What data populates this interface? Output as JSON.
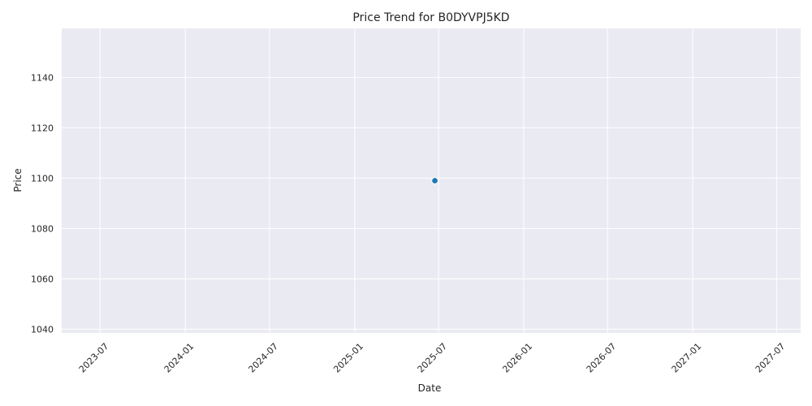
{
  "chart_data": {
    "type": "scatter",
    "title": "Price Trend for B0DYVPJ5KD",
    "xlabel": "Date",
    "ylabel": "Price",
    "x_ticks": [
      "2023-07",
      "2024-01",
      "2024-07",
      "2025-01",
      "2025-07",
      "2026-01",
      "2026-07",
      "2027-01",
      "2027-07"
    ],
    "y_ticks": [
      "1040",
      "1060",
      "1080",
      "1100",
      "1120",
      "1140"
    ],
    "xlim": [
      "2023-04-09",
      "2027-08-22"
    ],
    "ylim": [
      1038.5,
      1159.5
    ],
    "grid": true,
    "series": [
      {
        "points": [
          {
            "x": "2025-06-23",
            "y": 1099
          }
        ]
      }
    ],
    "colors": {
      "marker": "#1f77b4",
      "background": "#eaeaf2",
      "grid": "#ffffff"
    }
  }
}
